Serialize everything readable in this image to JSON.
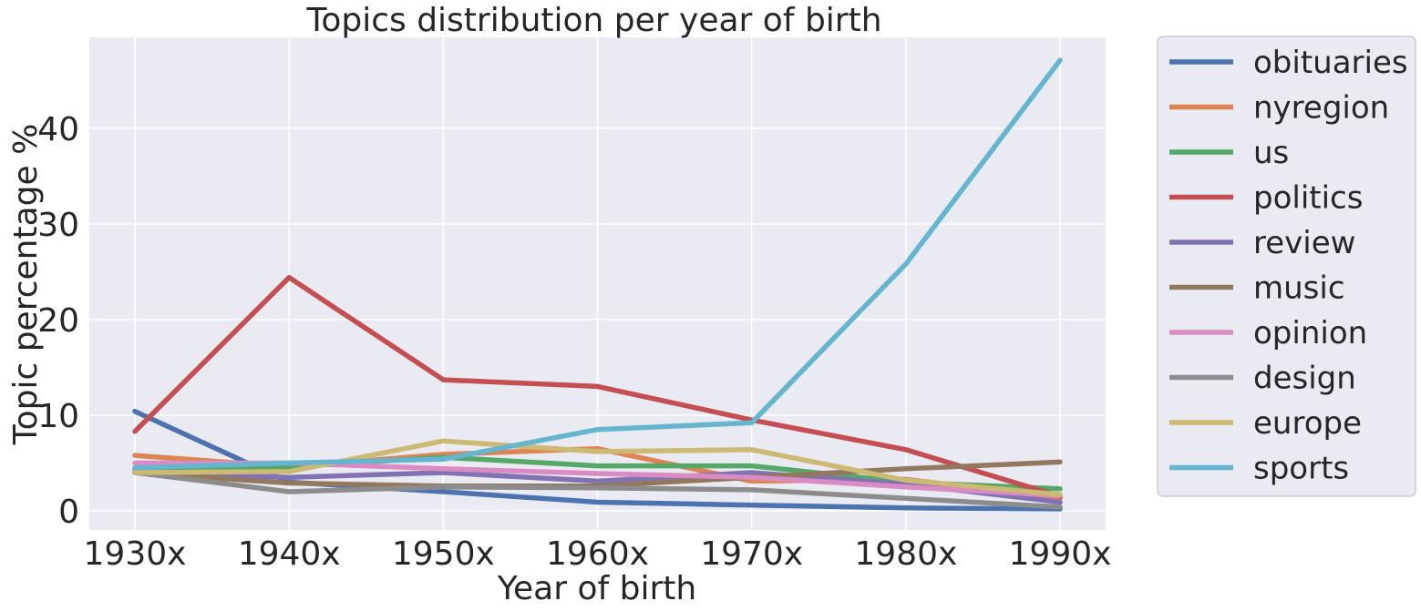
{
  "chart_data": {
    "type": "line",
    "title": "Topics distribution per year of birth",
    "xlabel": "Year of birth",
    "ylabel": "Topic percentage %",
    "categories": [
      "1930x",
      "1940x",
      "1950x",
      "1960x",
      "1970x",
      "1980x",
      "1990x"
    ],
    "yticks": [
      0,
      10,
      20,
      30,
      40
    ],
    "ylim": [
      -2,
      49.5
    ],
    "grid": true,
    "legend_position": "outside-right",
    "background": "#eaeaf2",
    "series": [
      {
        "name": "obituaries",
        "color": "#4c72b0",
        "values": [
          10.4,
          3.0,
          2.0,
          0.9,
          0.6,
          0.3,
          0.2
        ]
      },
      {
        "name": "nyregion",
        "color": "#dd8452",
        "values": [
          5.8,
          4.6,
          5.9,
          6.5,
          3.1,
          3.3,
          1.3
        ]
      },
      {
        "name": "us",
        "color": "#55a868",
        "values": [
          4.3,
          4.6,
          5.6,
          4.7,
          4.7,
          3.0,
          2.3
        ]
      },
      {
        "name": "politics",
        "color": "#c44e52",
        "values": [
          8.3,
          24.4,
          13.7,
          13.0,
          9.5,
          6.4,
          1.5
        ]
      },
      {
        "name": "review",
        "color": "#8172b3",
        "values": [
          4.0,
          3.5,
          4.0,
          3.1,
          4.0,
          2.8,
          0.9
        ]
      },
      {
        "name": "music",
        "color": "#937860",
        "values": [
          4.0,
          2.9,
          2.6,
          2.6,
          3.5,
          4.4,
          5.1
        ]
      },
      {
        "name": "opinion",
        "color": "#da8bc3",
        "values": [
          5.0,
          5.0,
          4.4,
          3.9,
          3.5,
          2.5,
          1.6
        ]
      },
      {
        "name": "design",
        "color": "#8c8c8c",
        "values": [
          4.0,
          2.0,
          2.5,
          2.4,
          2.2,
          1.3,
          0.4
        ]
      },
      {
        "name": "europe",
        "color": "#ccb974",
        "values": [
          4.0,
          4.1,
          7.3,
          6.2,
          6.4,
          3.2,
          1.7
        ]
      },
      {
        "name": "sports",
        "color": "#64b5cd",
        "values": [
          4.5,
          5.0,
          5.4,
          8.5,
          9.2,
          25.8,
          47.1
        ]
      }
    ]
  }
}
